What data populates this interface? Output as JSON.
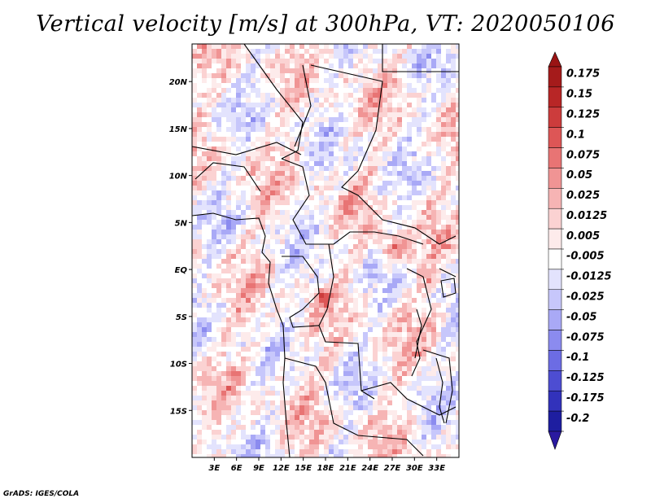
{
  "title": "Vertical velocity [m/s] at 300hPa, VT: 2020050106",
  "credit": "GrADS: IGES/COLA",
  "map": {
    "variable": "Vertical velocity",
    "units": "m/s",
    "level": "300hPa",
    "valid_time": "2020050106",
    "lon_range": [
      0,
      36
    ],
    "lat_range": [
      -20,
      24
    ],
    "lon_ticks": [
      {
        "value": 3,
        "label": "3E"
      },
      {
        "value": 6,
        "label": "6E"
      },
      {
        "value": 9,
        "label": "9E"
      },
      {
        "value": 12,
        "label": "12E"
      },
      {
        "value": 15,
        "label": "15E"
      },
      {
        "value": 18,
        "label": "18E"
      },
      {
        "value": 21,
        "label": "21E"
      },
      {
        "value": 24,
        "label": "24E"
      },
      {
        "value": 27,
        "label": "27E"
      },
      {
        "value": 30,
        "label": "30E"
      },
      {
        "value": 33,
        "label": "33E"
      }
    ],
    "lat_ticks": [
      {
        "value": 20,
        "label": "20N"
      },
      {
        "value": 15,
        "label": "15N"
      },
      {
        "value": 10,
        "label": "10N"
      },
      {
        "value": 5,
        "label": "5N"
      },
      {
        "value": 0,
        "label": "EQ"
      },
      {
        "value": -5,
        "label": "5S"
      },
      {
        "value": -10,
        "label": "10S"
      },
      {
        "value": -15,
        "label": "15S"
      }
    ]
  },
  "colorbar": {
    "levels": [
      {
        "label": "0.175",
        "color": "#a51b1b"
      },
      {
        "label": "0.15",
        "color": "#b82626"
      },
      {
        "label": "0.125",
        "color": "#cc3c3c"
      },
      {
        "label": "0.1",
        "color": "#dd5656"
      },
      {
        "label": "0.075",
        "color": "#e87474"
      },
      {
        "label": "0.05",
        "color": "#f09494"
      },
      {
        "label": "0.025",
        "color": "#f6b4b4"
      },
      {
        "label": "0.0125",
        "color": "#fbd2d2"
      },
      {
        "label": "0.005",
        "color": "#fdebeb"
      },
      {
        "label": "-0.005",
        "color": "#ffffff"
      },
      {
        "label": "-0.0125",
        "color": "#e3e3fd"
      },
      {
        "label": "-0.025",
        "color": "#c7c7fb"
      },
      {
        "label": "-0.05",
        "color": "#a9a9f6"
      },
      {
        "label": "-0.075",
        "color": "#8b8bef"
      },
      {
        "label": "-0.1",
        "color": "#6c6ce4"
      },
      {
        "label": "-0.125",
        "color": "#4d4dd2"
      },
      {
        "label": "-0.175",
        "color": "#3232bb"
      },
      {
        "label": "-0.2",
        "color": "#1e1ea0"
      }
    ],
    "top_color": "#9a1414",
    "bottom_color": "#2a1aa0"
  }
}
